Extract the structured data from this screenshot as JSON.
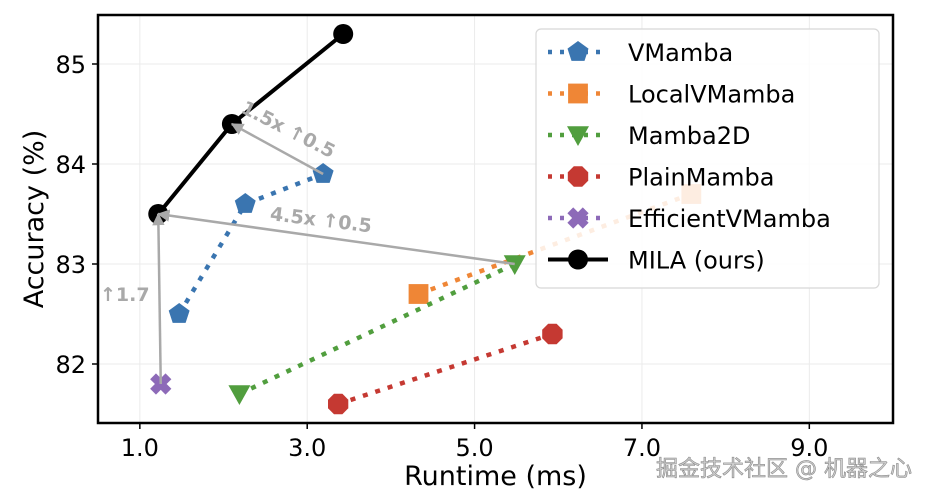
{
  "chart_data": {
    "type": "line",
    "title": "",
    "xlabel": "Runtime (ms)",
    "ylabel": "Accuracy (%)",
    "xlim": [
      0.5,
      10.0
    ],
    "ylim": [
      81.41,
      85.49
    ],
    "xticks": [
      1.0,
      3.0,
      5.0,
      7.0,
      9.0
    ],
    "xtick_labels": [
      "1.0",
      "3.0",
      "5.0",
      "7.0",
      "9.0"
    ],
    "yticks": [
      82,
      83,
      84,
      85
    ],
    "ytick_labels": [
      "82",
      "83",
      "84",
      "85"
    ],
    "grid": true,
    "legend_position": "top-right",
    "series": [
      {
        "name": "VMamba",
        "color": "#3a75b0",
        "marker": "pentagon",
        "linestyle": "dotted",
        "points": [
          {
            "x": 1.47,
            "y": 82.5
          },
          {
            "x": 2.26,
            "y": 83.6
          },
          {
            "x": 3.19,
            "y": 83.9
          }
        ]
      },
      {
        "name": "LocalVMamba",
        "color": "#ef8636",
        "marker": "square",
        "linestyle": "dotted",
        "points": [
          {
            "x": 4.33,
            "y": 82.7
          },
          {
            "x": 7.59,
            "y": 83.7
          }
        ]
      },
      {
        "name": "Mamba2D",
        "color": "#519e3e",
        "marker": "triangle-down",
        "linestyle": "dotted",
        "points": [
          {
            "x": 2.19,
            "y": 81.7
          },
          {
            "x": 5.48,
            "y": 83.0
          }
        ]
      },
      {
        "name": "PlainMamba",
        "color": "#c53932",
        "marker": "octagon",
        "linestyle": "dotted",
        "points": [
          {
            "x": 3.37,
            "y": 81.6
          },
          {
            "x": 5.93,
            "y": 82.3
          }
        ]
      },
      {
        "name": "EfficientVMamba",
        "color": "#8d6ab8",
        "marker": "x-filled",
        "linestyle": "dotted",
        "points": [
          {
            "x": 1.25,
            "y": 81.8
          }
        ]
      },
      {
        "name": "MILA (ours)",
        "color": "#000000",
        "marker": "circle",
        "linestyle": "solid",
        "points": [
          {
            "x": 1.22,
            "y": 83.5
          },
          {
            "x": 2.1,
            "y": 84.4
          },
          {
            "x": 3.43,
            "y": 85.3
          }
        ]
      }
    ],
    "annotations": [
      {
        "text": "1.5x ↑0.5",
        "from": {
          "x": 3.19,
          "y": 83.9
        },
        "to": {
          "x": 2.1,
          "y": 84.4
        }
      },
      {
        "text": "4.5x ↑0.5",
        "from": {
          "x": 5.48,
          "y": 83.0
        },
        "to": {
          "x": 1.22,
          "y": 83.5
        }
      },
      {
        "text": "↑1.7",
        "from": {
          "x": 1.25,
          "y": 81.8
        },
        "to": {
          "x": 1.22,
          "y": 83.5
        }
      }
    ]
  },
  "watermark": "掘金技术社区 @ 机器之心"
}
